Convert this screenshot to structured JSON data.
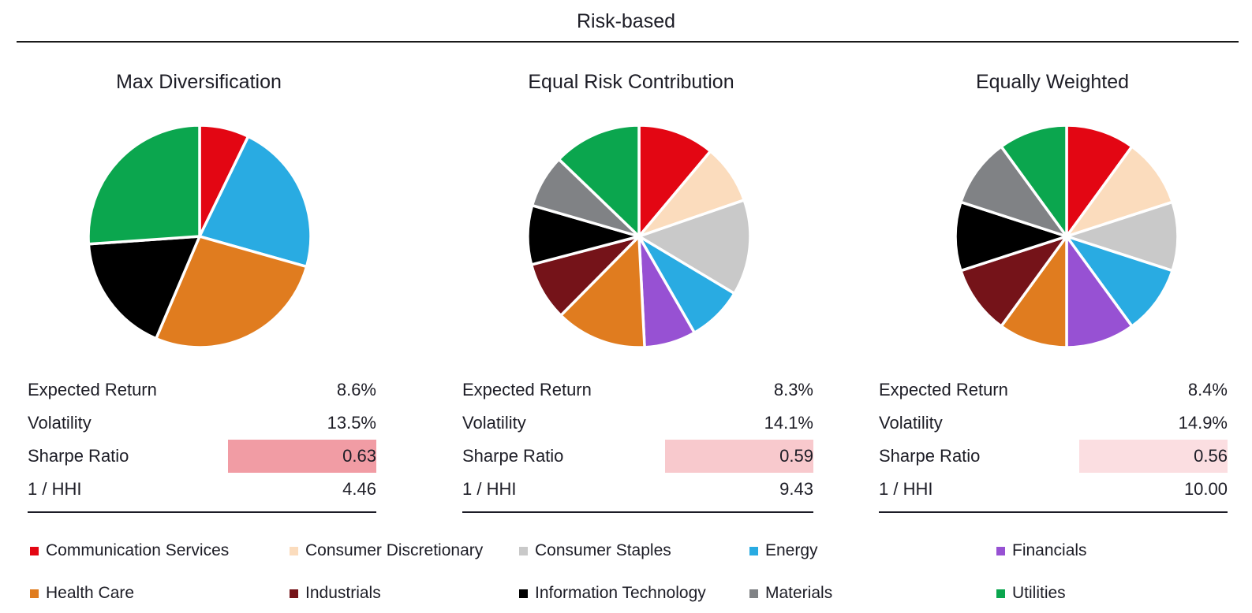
{
  "title": "Risk-based",
  "stats": {
    "row_labels": [
      "Expected Return",
      "Volatility",
      "Sharpe Ratio",
      "1 / HHI"
    ],
    "columns": [
      {
        "portfolio": "Max Diversification",
        "expected_return": "8.6%",
        "volatility": "13.5%",
        "sharpe_ratio": "0.63",
        "inv_hhi": "4.46",
        "sharpe_bg": "#f19ca4"
      },
      {
        "portfolio": "Equal Risk Contribution",
        "expected_return": "8.3%",
        "volatility": "14.1%",
        "sharpe_ratio": "0.59",
        "inv_hhi": "9.43",
        "sharpe_bg": "#f8c9cd"
      },
      {
        "portfolio": "Equally Weighted",
        "expected_return": "8.4%",
        "volatility": "14.9%",
        "sharpe_ratio": "0.56",
        "inv_hhi": "10.00",
        "sharpe_bg": "#fbdee1"
      }
    ]
  },
  "legend": {
    "items": [
      {
        "label": "Communication Services",
        "color": "#e30613"
      },
      {
        "label": "Consumer Discretionary",
        "color": "#fbdcbd"
      },
      {
        "label": "Consumer Staples",
        "color": "#c9c9c9"
      },
      {
        "label": "Energy",
        "color": "#29abe2"
      },
      {
        "label": "Financials",
        "color": "#9751d3"
      },
      {
        "label": "Health Care",
        "color": "#e07c1f"
      },
      {
        "label": "Industrials",
        "color": "#751319"
      },
      {
        "label": "Information Technology",
        "color": "#000000"
      },
      {
        "label": "Materials",
        "color": "#808285"
      },
      {
        "label": "Utilities",
        "color": "#0ba64e"
      }
    ]
  },
  "chart_data": [
    {
      "type": "pie",
      "title": "Max Diversification",
      "unit": "portfolio weight %",
      "start_angle_deg": 0,
      "direction": "clockwise-from-top",
      "labels": [
        "Communication Services",
        "Energy",
        "Health Care",
        "Information Technology",
        "Utilities"
      ],
      "values_pct": [
        7.2,
        22.2,
        27.0,
        17.5,
        26.1
      ],
      "colors": [
        "#e30613",
        "#29abe2",
        "#e07c1f",
        "#000000",
        "#0ba64e"
      ]
    },
    {
      "type": "pie",
      "title": "Equal Risk Contribution",
      "unit": "portfolio weight %",
      "start_angle_deg": 0,
      "direction": "clockwise-from-top",
      "labels": [
        "Communication Services",
        "Consumer Discretionary",
        "Consumer Staples",
        "Energy",
        "Financials",
        "Health Care",
        "Industrials",
        "Information Technology",
        "Materials",
        "Utilities"
      ],
      "values_pct": [
        11.1,
        8.6,
        13.9,
        8.1,
        7.5,
        13.2,
        8.5,
        8.6,
        7.7,
        12.8
      ],
      "colors": [
        "#e30613",
        "#fbdcbd",
        "#c9c9c9",
        "#29abe2",
        "#9751d3",
        "#e07c1f",
        "#751319",
        "#000000",
        "#808285",
        "#0ba64e"
      ]
    },
    {
      "type": "pie",
      "title": "Equally Weighted",
      "unit": "portfolio weight %",
      "start_angle_deg": 0,
      "direction": "clockwise-from-top",
      "labels": [
        "Communication Services",
        "Consumer Discretionary",
        "Consumer Staples",
        "Energy",
        "Financials",
        "Health Care",
        "Industrials",
        "Information Technology",
        "Materials",
        "Utilities"
      ],
      "values_pct": [
        10,
        10,
        10,
        10,
        10,
        10,
        10,
        10,
        10,
        10
      ],
      "colors": [
        "#e30613",
        "#fbdcbd",
        "#c9c9c9",
        "#29abe2",
        "#9751d3",
        "#e07c1f",
        "#751319",
        "#000000",
        "#808285",
        "#0ba64e"
      ]
    }
  ]
}
